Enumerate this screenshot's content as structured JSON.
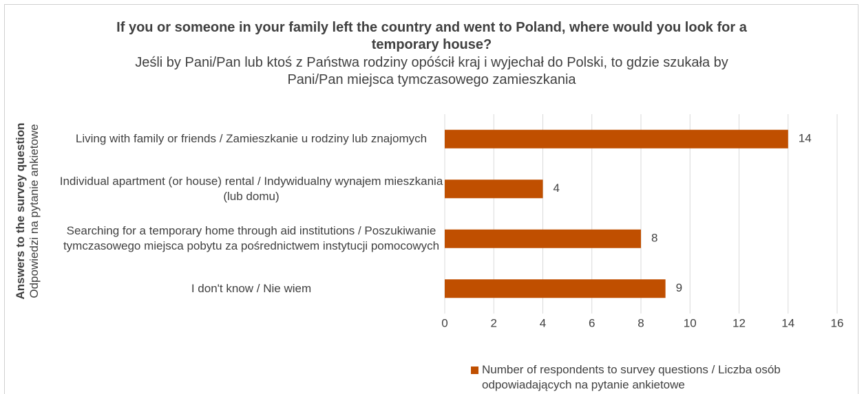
{
  "chart_data": {
    "type": "barh",
    "title": "If you or someone in your family left the country and went to Poland, where would you look for a temporary house?",
    "subtitle": "Jeśli by Pani/Pan lub ktoś z Państwa rodziny opóścił kraj i wyjechał do Polski, to gdzie szukała by Pani/Pan miejsca tymczasowego zamieszkania",
    "y_title": "Answers to the survey question",
    "y_subtitle": "Odpowiedzi na pytanie ankietowe",
    "categories": [
      "Living with family or friends / Zamieszkanie u rodziny lub znajomych",
      "Individual apartment (or house) rental / Indywidualny wynajem mieszkania (lub domu)",
      "Searching for a temporary home through aid institutions / Poszukiwanie tymczasowego miejsca pobytu za pośrednictwem instytucji pomocowych",
      "I don't know / Nie wiem"
    ],
    "series": [
      {
        "name": "Number of respondents to survey questions / Liczba osób odpowiadających na pytanie ankietowe",
        "color": "#c04f00",
        "values": [
          14,
          4,
          8,
          9
        ]
      }
    ],
    "xlim": [
      0,
      16
    ],
    "xticks": [
      0,
      2,
      4,
      6,
      8,
      10,
      12,
      14,
      16
    ],
    "grid": true,
    "legend": "bottom-right"
  }
}
